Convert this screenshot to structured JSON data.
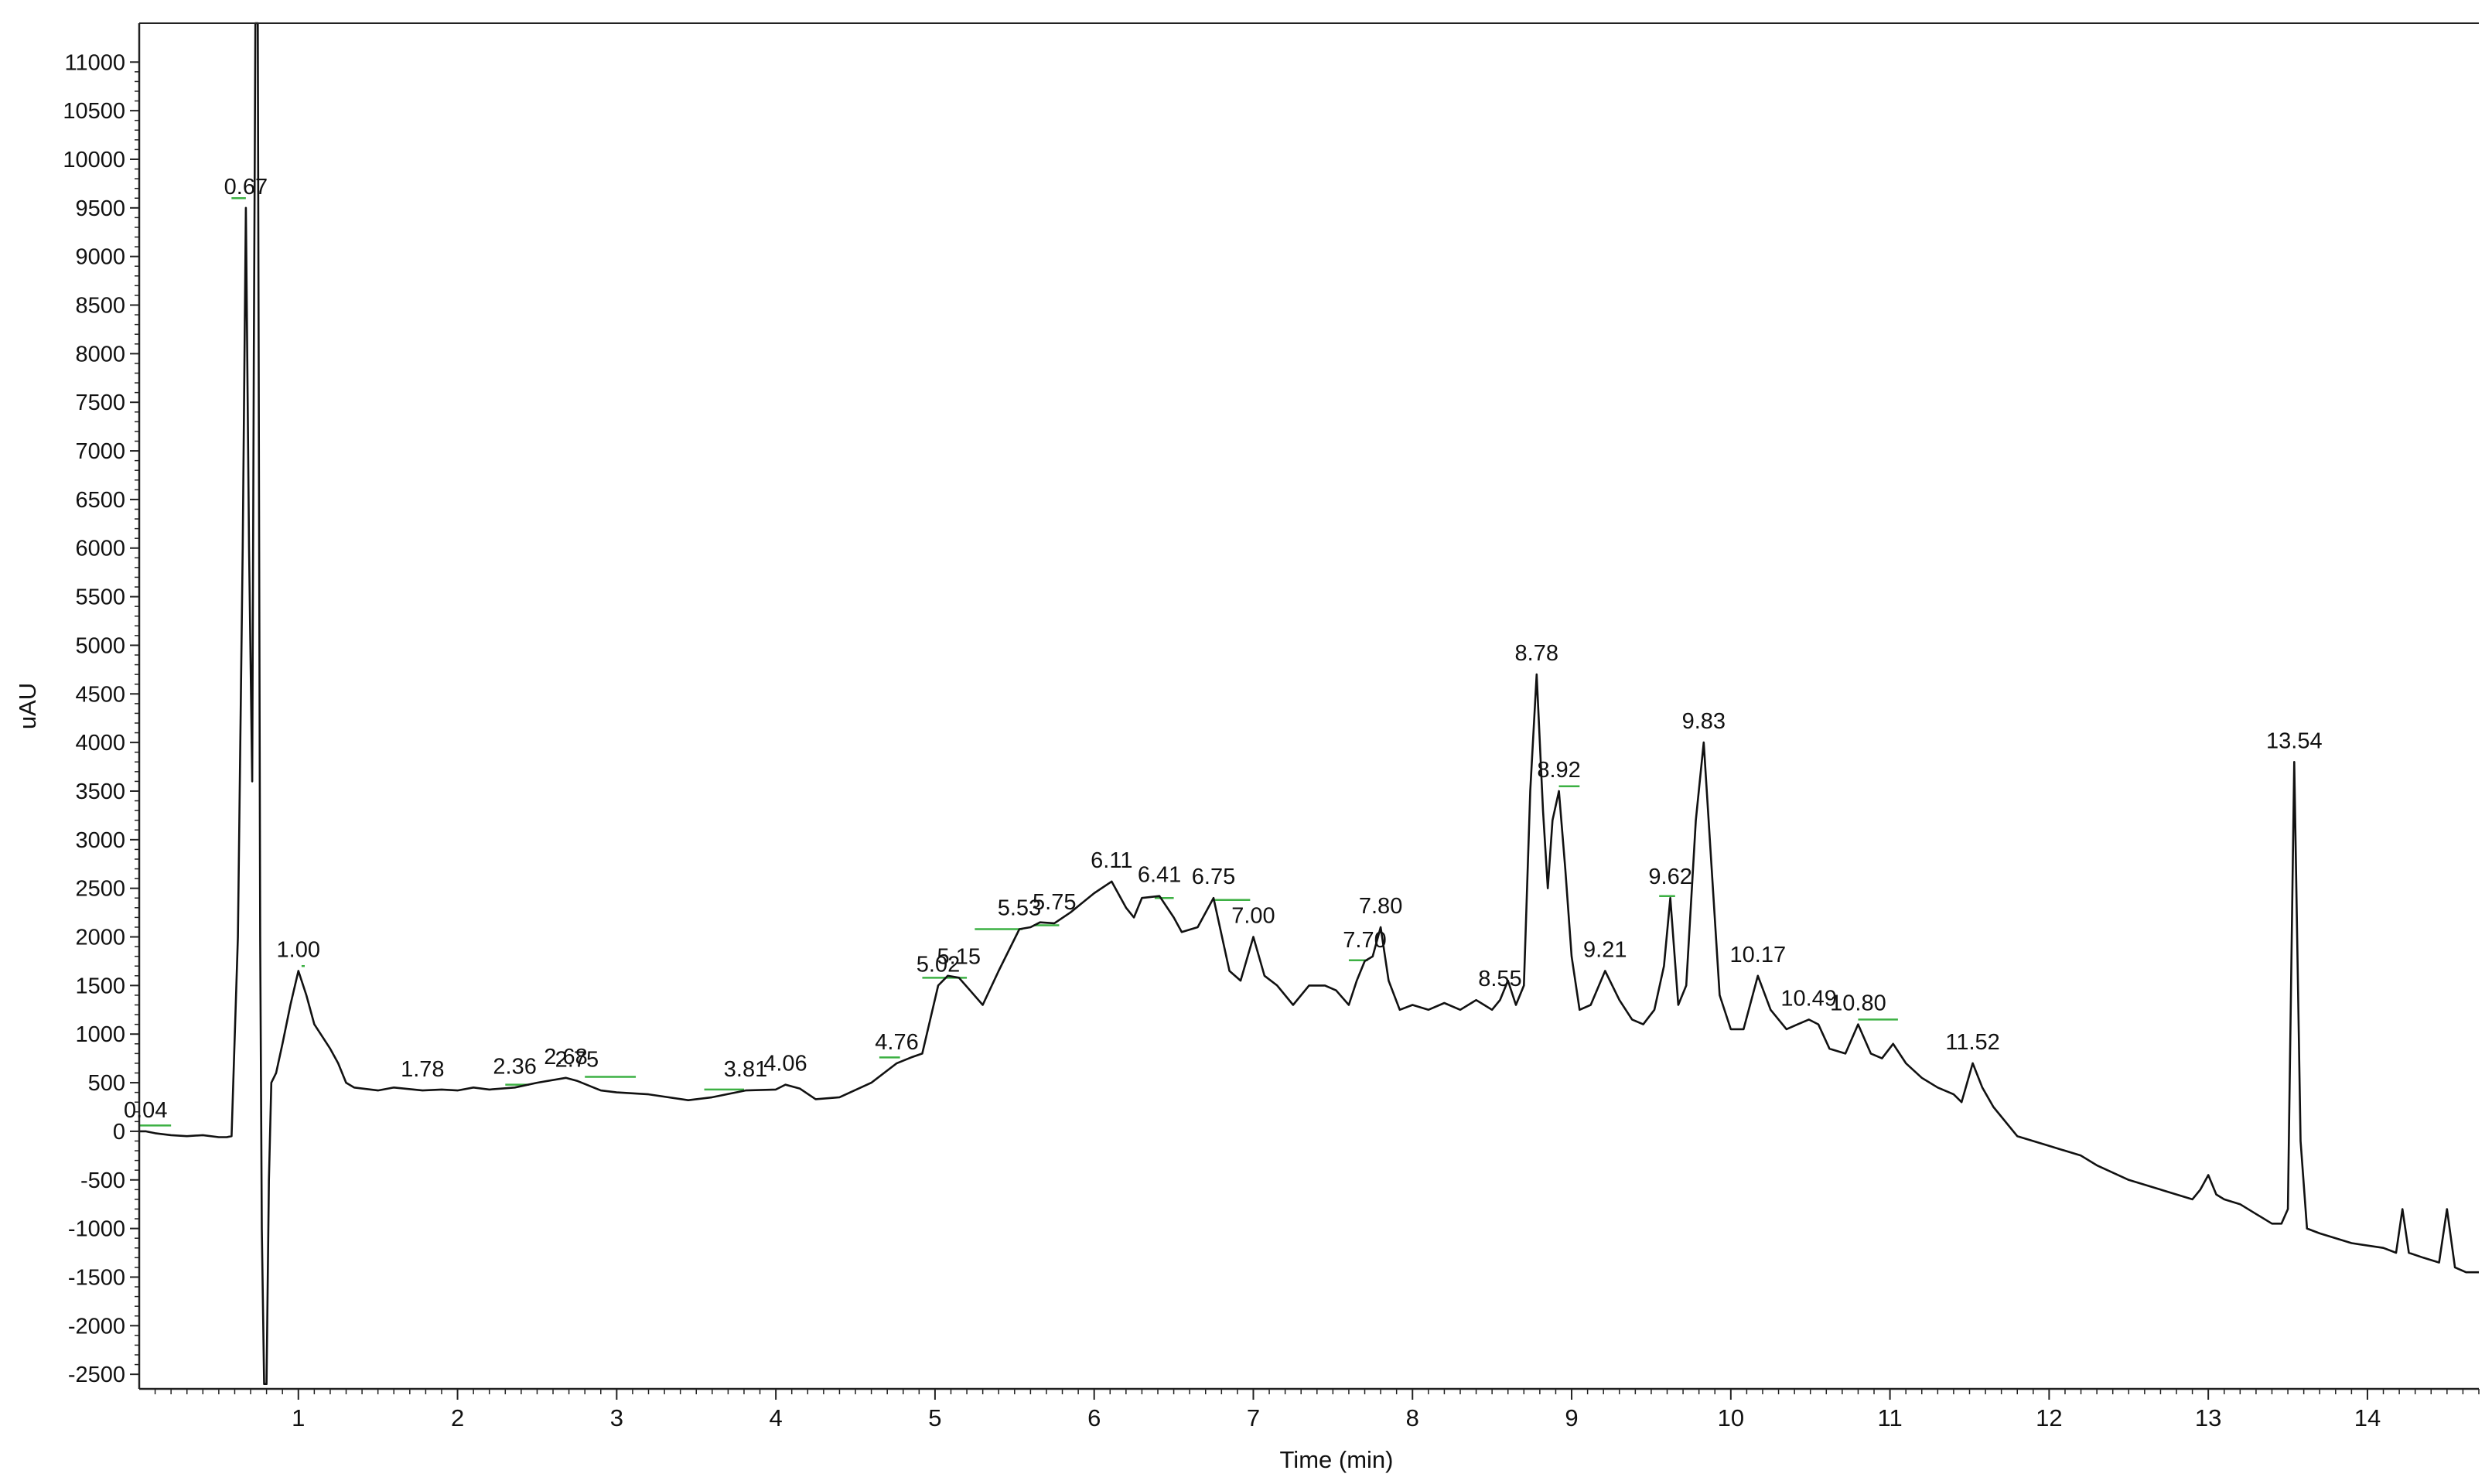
{
  "chart_data": {
    "type": "line",
    "title": "",
    "xlabel": "Time (min)",
    "ylabel": "uAU",
    "xlim": [
      0,
      14.7
    ],
    "ylim": [
      -2650,
      11400
    ],
    "x_ticks": [
      1,
      2,
      3,
      4,
      5,
      6,
      7,
      8,
      9,
      10,
      11,
      12,
      13,
      14
    ],
    "y_ticks": [
      -2500,
      -2000,
      -1500,
      -1000,
      -500,
      0,
      500,
      1000,
      1500,
      2000,
      2500,
      3000,
      3500,
      4000,
      4500,
      5000,
      5500,
      6000,
      6500,
      7000,
      7500,
      8000,
      8500,
      9000,
      9500,
      10000,
      10500,
      11000
    ],
    "grid": false,
    "legend": "none",
    "colors": {
      "trace": "#111111",
      "baseline_marker": "#3cb043",
      "axis": "#222222"
    },
    "series": [
      {
        "x": [
          0.0,
          0.04,
          0.1,
          0.2,
          0.3,
          0.4,
          0.5,
          0.55,
          0.58,
          0.62,
          0.65,
          0.67,
          0.69,
          0.71,
          0.72,
          0.73,
          0.745,
          0.76,
          0.77,
          0.785,
          0.8,
          0.815,
          0.83,
          0.86,
          0.9,
          0.95,
          1.0,
          1.05,
          1.1,
          1.2,
          1.25,
          1.3,
          1.35,
          1.5,
          1.6,
          1.78,
          1.9,
          2.0,
          2.1,
          2.2,
          2.36,
          2.5,
          2.68,
          2.75,
          2.9,
          3.0,
          3.2,
          3.45,
          3.6,
          3.81,
          4.0,
          4.06,
          4.15,
          4.25,
          4.4,
          4.6,
          4.76,
          4.85,
          4.92,
          5.02,
          5.08,
          5.15,
          5.22,
          5.3,
          5.4,
          5.53,
          5.6,
          5.66,
          5.75,
          5.85,
          6.0,
          6.11,
          6.2,
          6.25,
          6.3,
          6.41,
          6.5,
          6.55,
          6.65,
          6.75,
          6.85,
          6.92,
          7.0,
          7.07,
          7.15,
          7.25,
          7.35,
          7.45,
          7.52,
          7.6,
          7.65,
          7.7,
          7.75,
          7.8,
          7.85,
          7.92,
          8.0,
          8.1,
          8.2,
          8.3,
          8.4,
          8.45,
          8.5,
          8.55,
          8.6,
          8.65,
          8.7,
          8.74,
          8.78,
          8.82,
          8.85,
          8.88,
          8.92,
          8.96,
          9.0,
          9.05,
          9.12,
          9.21,
          9.3,
          9.38,
          9.45,
          9.52,
          9.58,
          9.62,
          9.67,
          9.72,
          9.78,
          9.83,
          9.88,
          9.93,
          10.0,
          10.08,
          10.17,
          10.25,
          10.35,
          10.42,
          10.49,
          10.55,
          10.62,
          10.72,
          10.8,
          10.88,
          10.95,
          11.02,
          11.1,
          11.2,
          11.3,
          11.4,
          11.45,
          11.52,
          11.58,
          11.65,
          11.8,
          12.0,
          12.2,
          12.3,
          12.5,
          12.7,
          12.9,
          12.95,
          13.0,
          13.05,
          13.1,
          13.2,
          13.3,
          13.4,
          13.46,
          13.5,
          13.54,
          13.58,
          13.62,
          13.7,
          13.9,
          14.1,
          14.18,
          14.22,
          14.26,
          14.35,
          14.45,
          14.5,
          14.55,
          14.62,
          14.7
        ],
        "y": [
          0,
          0,
          -20,
          -40,
          -50,
          -40,
          -60,
          -60,
          -50,
          2000,
          6000,
          9500,
          6000,
          3600,
          8000,
          12000,
          12000,
          2000,
          -1000,
          -2600,
          -2600,
          -500,
          500,
          600,
          900,
          1300,
          1650,
          1400,
          1100,
          850,
          700,
          500,
          450,
          420,
          450,
          420,
          430,
          420,
          450,
          430,
          450,
          500,
          550,
          520,
          420,
          400,
          380,
          320,
          350,
          420,
          430,
          480,
          440,
          330,
          350,
          500,
          700,
          760,
          800,
          1500,
          1600,
          1580,
          1450,
          1300,
          1650,
          2080,
          2100,
          2150,
          2140,
          2250,
          2450,
          2570,
          2300,
          2200,
          2400,
          2420,
          2200,
          2050,
          2100,
          2400,
          1650,
          1550,
          2000,
          1600,
          1500,
          1300,
          1500,
          1500,
          1450,
          1300,
          1550,
          1750,
          1800,
          2100,
          1550,
          1250,
          1300,
          1250,
          1320,
          1250,
          1350,
          1300,
          1250,
          1350,
          1550,
          1300,
          1500,
          3500,
          4700,
          3300,
          2500,
          3200,
          3500,
          2700,
          1800,
          1250,
          1300,
          1650,
          1350,
          1150,
          1100,
          1250,
          1700,
          2400,
          1300,
          1500,
          3200,
          4000,
          2700,
          1400,
          1050,
          1050,
          1600,
          1250,
          1050,
          1100,
          1150,
          1100,
          850,
          800,
          1100,
          800,
          750,
          900,
          700,
          550,
          450,
          380,
          300,
          700,
          450,
          250,
          -50,
          -150,
          -250,
          -350,
          -500,
          -600,
          -700,
          -600,
          -450,
          -650,
          -700,
          -750,
          -850,
          -950,
          -950,
          -800,
          3800,
          -100,
          -1000,
          -1050,
          -1150,
          -1200,
          -1250,
          -800,
          -1250,
          -1300,
          -1350,
          -800,
          -1400,
          -1450,
          -1450
        ]
      }
    ],
    "peak_labels": [
      {
        "text": "0.04",
        "x": 0.04,
        "y": 0
      },
      {
        "text": "0.67",
        "x": 0.67,
        "y": 9500
      },
      {
        "text": "1.00",
        "x": 1.0,
        "y": 1650
      },
      {
        "text": "1.78",
        "x": 1.78,
        "y": 420
      },
      {
        "text": "2.36",
        "x": 2.36,
        "y": 450
      },
      {
        "text": "2.68",
        "x": 2.68,
        "y": 550
      },
      {
        "text": "2.75",
        "x": 2.75,
        "y": 520
      },
      {
        "text": "3.81",
        "x": 3.81,
        "y": 420
      },
      {
        "text": "4.06",
        "x": 4.06,
        "y": 480
      },
      {
        "text": "4.76",
        "x": 4.76,
        "y": 700
      },
      {
        "text": "5.02",
        "x": 5.02,
        "y": 1500
      },
      {
        "text": "5.15",
        "x": 5.15,
        "y": 1580
      },
      {
        "text": "5.53",
        "x": 5.53,
        "y": 2080
      },
      {
        "text": "5.75",
        "x": 5.75,
        "y": 2140
      },
      {
        "text": "6.11",
        "x": 6.11,
        "y": 2570
      },
      {
        "text": "6.41",
        "x": 6.41,
        "y": 2420
      },
      {
        "text": "6.75",
        "x": 6.75,
        "y": 2400
      },
      {
        "text": "7.00",
        "x": 7.0,
        "y": 2000
      },
      {
        "text": "7.70",
        "x": 7.7,
        "y": 1750
      },
      {
        "text": "7.80",
        "x": 7.8,
        "y": 2100
      },
      {
        "text": "8.55",
        "x": 8.55,
        "y": 1350
      },
      {
        "text": "8.78",
        "x": 8.78,
        "y": 4700
      },
      {
        "text": "8.92",
        "x": 8.92,
        "y": 3500
      },
      {
        "text": "9.21",
        "x": 9.21,
        "y": 1650
      },
      {
        "text": "9.62",
        "x": 9.62,
        "y": 2400
      },
      {
        "text": "9.83",
        "x": 9.83,
        "y": 4000
      },
      {
        "text": "10.17",
        "x": 10.17,
        "y": 1600
      },
      {
        "text": "10.49",
        "x": 10.49,
        "y": 1150
      },
      {
        "text": "10.80",
        "x": 10.8,
        "y": 1100
      },
      {
        "text": "11.52",
        "x": 11.52,
        "y": 700
      },
      {
        "text": "13.54",
        "x": 13.54,
        "y": 3800
      }
    ],
    "baseline_segments": [
      [
        0.0,
        0.2,
        60
      ],
      [
        0.58,
        0.67,
        9600
      ],
      [
        1.02,
        1.04,
        1700
      ],
      [
        2.3,
        2.45,
        480
      ],
      [
        2.8,
        3.12,
        560
      ],
      [
        3.55,
        3.8,
        430
      ],
      [
        4.65,
        4.78,
        760
      ],
      [
        4.92,
        5.2,
        1580
      ],
      [
        5.25,
        5.55,
        2080
      ],
      [
        5.62,
        5.78,
        2120
      ],
      [
        6.38,
        6.5,
        2400
      ],
      [
        6.75,
        6.98,
        2380
      ],
      [
        7.6,
        7.72,
        1760
      ],
      [
        8.92,
        9.05,
        3550
      ],
      [
        9.55,
        9.65,
        2420
      ],
      [
        10.8,
        11.05,
        1150
      ]
    ]
  }
}
